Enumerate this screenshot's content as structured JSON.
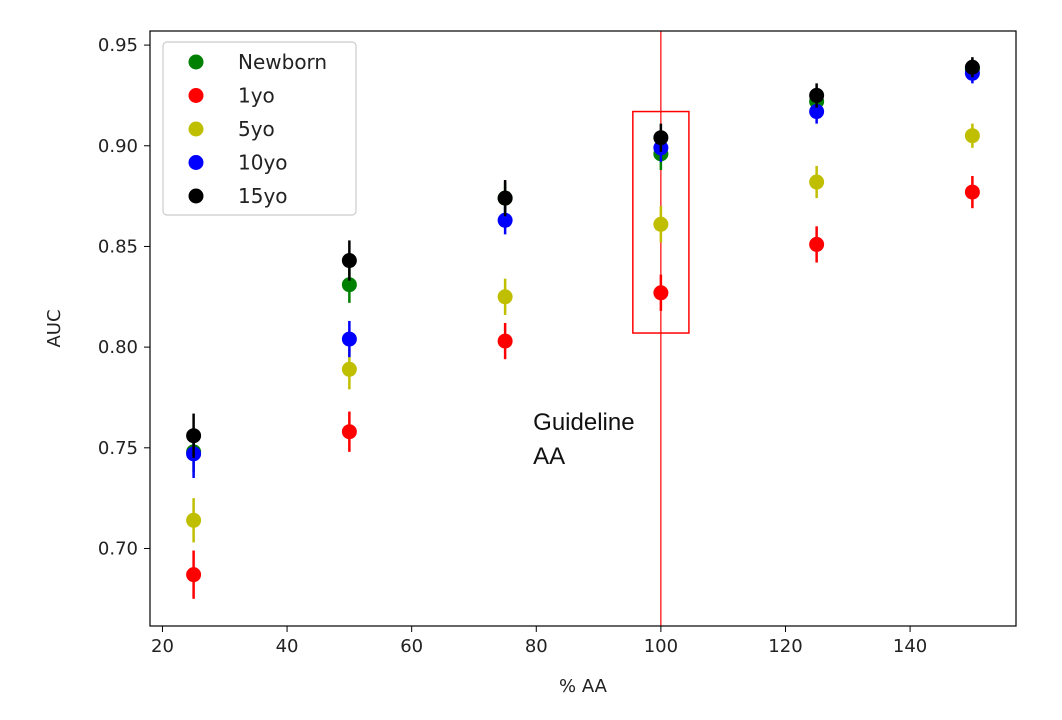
{
  "chart_data": {
    "type": "scatter",
    "xlabel": "% AA",
    "ylabel": "AUC",
    "xlim": [
      18,
      157
    ],
    "ylim": [
      0.6615,
      0.957
    ],
    "xticks": [
      20,
      40,
      60,
      80,
      100,
      120,
      140
    ],
    "yticks": [
      0.7,
      0.75,
      0.8,
      0.85,
      0.9,
      0.95
    ],
    "xtick_labels": [
      "20",
      "40",
      "60",
      "80",
      "100",
      "120",
      "140"
    ],
    "ytick_labels": [
      "0.70",
      "0.75",
      "0.80",
      "0.85",
      "0.90",
      "0.95"
    ],
    "grid": false,
    "legend_position": "top-left",
    "x": [
      25,
      50,
      75,
      100,
      125,
      150
    ],
    "series": [
      {
        "name": "Newborn",
        "color": "#008000",
        "values": [
          0.748,
          0.831,
          0.874,
          0.896,
          0.922,
          0.938
        ],
        "err": [
          0.01,
          0.009,
          0.008,
          0.008,
          0.007,
          0.005
        ]
      },
      {
        "name": "1yo",
        "color": "#ff0000",
        "values": [
          0.687,
          0.758,
          0.803,
          0.827,
          0.851,
          0.877
        ],
        "err": [
          0.012,
          0.01,
          0.009,
          0.009,
          0.009,
          0.008
        ]
      },
      {
        "name": "5yo",
        "color": "#bfbf00",
        "values": [
          0.714,
          0.789,
          0.825,
          0.861,
          0.882,
          0.905
        ],
        "err": [
          0.011,
          0.01,
          0.009,
          0.009,
          0.008,
          0.006
        ]
      },
      {
        "name": "10yo",
        "color": "#0000ff",
        "values": [
          0.747,
          0.804,
          0.863,
          0.899,
          0.917,
          0.936
        ],
        "err": [
          0.012,
          0.009,
          0.007,
          0.007,
          0.006,
          0.005
        ]
      },
      {
        "name": "15yo",
        "color": "#000000",
        "values": [
          0.756,
          0.843,
          0.874,
          0.904,
          0.925,
          0.939
        ],
        "err": [
          0.011,
          0.01,
          0.009,
          0.007,
          0.006,
          0.005
        ]
      }
    ],
    "reference_line": {
      "x": 100,
      "color": "#ff0000"
    },
    "highlight_box": {
      "x_range": [
        95.5,
        104.5
      ],
      "y_range": [
        0.807,
        0.917
      ],
      "color": "#ff0000"
    },
    "annotation": {
      "lines": [
        "Guideline",
        "AA"
      ],
      "x": 79.5,
      "y": 0.742
    }
  }
}
